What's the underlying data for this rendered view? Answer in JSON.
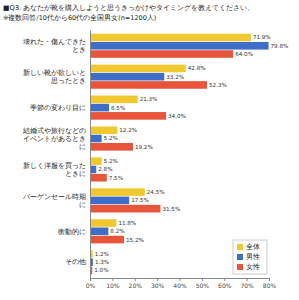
{
  "chart_data": {
    "type": "bar",
    "orientation": "horizontal",
    "title": "■Q3. あなたが靴を購入しようと思うきっかけやタイミングを教えてください。",
    "subtitle": "※複数回答/10代から60代の全国男女(n=1200人)",
    "categories": [
      "壊れた・傷んできたとき",
      "新しい靴が欲しいと思ったとき",
      "季節の変わり目に",
      "結婚式や旅行などのイベントがあるときに",
      "新しく洋服を買ったときに",
      "バーゲンセール時期に",
      "衝動的に",
      "その他"
    ],
    "series": [
      {
        "name": "全体",
        "color": "#f2c830",
        "values": [
          71.9,
          42.8,
          21.3,
          12.2,
          5.2,
          24.5,
          11.8,
          1.2
        ],
        "value_labels": [
          "71.9%",
          "42.8%",
          "21.3%",
          "12.2%",
          "5.2%",
          "24.5%",
          "11.8%",
          "1.2%"
        ]
      },
      {
        "name": "男性",
        "color": "#3d6fc8",
        "values": [
          79.8,
          33.2,
          8.5,
          5.2,
          2.8,
          17.5,
          8.2,
          1.3
        ],
        "value_labels": [
          "79.8%",
          "33.2%",
          "8.5%",
          "5.2%",
          "2.8%",
          "17.5%",
          "8.2%",
          "1.3%"
        ]
      },
      {
        "name": "女性",
        "color": "#e8553a",
        "values": [
          64.0,
          52.3,
          34.0,
          19.2,
          7.5,
          31.5,
          15.2,
          1.0
        ],
        "value_labels": [
          "64.0%",
          "52.3%",
          "34.0%",
          "19.2%",
          "7.5%",
          "31.5%",
          "15.2%",
          "1.0%"
        ]
      }
    ],
    "xlim": [
      0,
      80
    ],
    "xticks": [
      {
        "value": 0,
        "label": "0%"
      },
      {
        "value": 10,
        "label": "10%"
      },
      {
        "value": 20,
        "label": "20%"
      },
      {
        "value": 30,
        "label": "30%"
      },
      {
        "value": 40,
        "label": "40%"
      },
      {
        "value": 50,
        "label": "50%"
      },
      {
        "value": 60,
        "label": "60%"
      },
      {
        "value": 70,
        "label": "70%"
      },
      {
        "value": 80,
        "label": "80%"
      }
    ],
    "data_labels": true,
    "legend": "lower right",
    "grid": false
  }
}
